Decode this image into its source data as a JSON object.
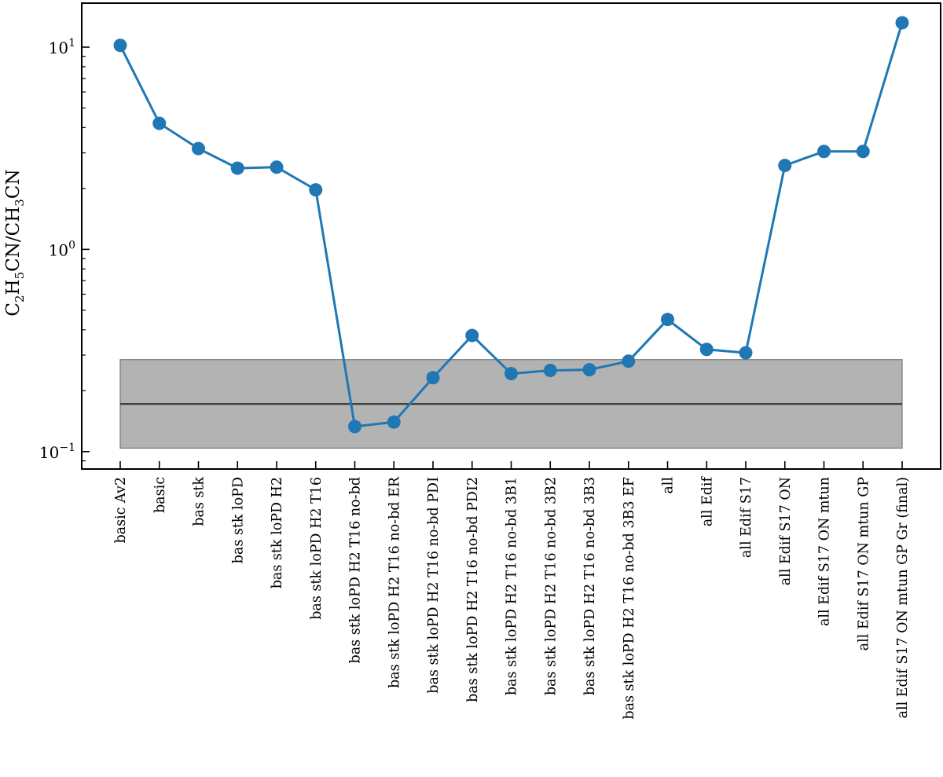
{
  "chart_data": {
    "type": "line",
    "ylabel": "C2H5CN/CH3CN",
    "yscale": "log",
    "ylim": [
      0.082,
      16.5
    ],
    "yticks": [
      {
        "value": 0.1,
        "base": "10",
        "exp": "−1"
      },
      {
        "value": 1,
        "base": "10",
        "exp": "0"
      },
      {
        "value": 10,
        "base": "10",
        "exp": "1"
      }
    ],
    "categories": [
      "basic Av2",
      "basic",
      "bas stk",
      "bas stk loPD",
      "bas stk loPD H2",
      "bas stk loPD H2 T16",
      "bas stk loPD H2 T16 no-bd",
      "bas stk loPD H2 T16 no-bd ER",
      "bas stk loPD H2 T16 no-bd PDI",
      "bas stk loPD H2 T16 no-bd PDI2",
      "bas stk loPD H2 T16 no-bd 3B1",
      "bas stk loPD H2 T16 no-bd 3B2",
      "bas stk loPD H2 T16 no-bd 3B3",
      "bas stk loPD H2 T16 no-bd 3B3 EF",
      "all",
      "all Edif",
      "all Edif S17",
      "all Edif S17 ON",
      "all Edif S17 ON mtun",
      "all Edif S17 ON mtun GP",
      "all Edif S17 ON mtun GP Gr (final)"
    ],
    "series": [
      {
        "values": [
          10.2,
          4.2,
          3.15,
          2.52,
          2.55,
          1.97,
          0.133,
          0.14,
          0.232,
          0.375,
          0.243,
          0.252,
          0.254,
          0.28,
          0.45,
          0.32,
          0.308,
          2.6,
          3.05,
          3.05,
          13.2
        ],
        "color": "#1f77b4"
      }
    ],
    "observed_band": {
      "center": 0.172,
      "low": 0.104,
      "high": 0.285,
      "fill_color": "#b3b3b3",
      "line_color": "#333333"
    },
    "grid": false,
    "legend": "none"
  }
}
